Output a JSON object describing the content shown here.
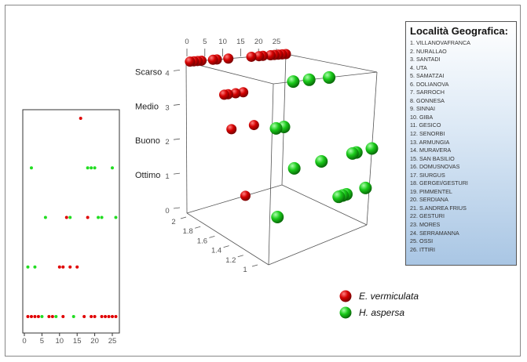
{
  "legend": {
    "title": "Località Geografica:",
    "items": [
      "1. VILLANOVAFRANCA",
      "2. NURALLAO",
      "3. SANTADI",
      "4. UTA",
      "5. SAMATZAI",
      "6. DOLIANOVA",
      "7. SARROCH",
      "8. GONNESA",
      "9. SINNAI",
      "10. GIBA",
      "11. GESICO",
      "12. SENORBI",
      "13. ARMUNGIA",
      "14. MURAVERA",
      "15. SAN BASILIO",
      "16. DOMUSNOVAS",
      "17. SIURGUS",
      "18. GERGEI/GESTURI",
      "19. PIMMENTEL",
      "20. SERDIANA",
      "21. S.ANDREA FRIUS",
      "22. GESTURI",
      "23. MORES",
      "24. SERRAMANNA",
      "25. OSSI",
      "26. ITTIRI"
    ]
  },
  "species_legend": [
    {
      "name": "E. vermiculata",
      "color": "#d40000"
    },
    {
      "name": "H. aspersa",
      "color": "#19c919"
    }
  ],
  "chart_data": [
    {
      "type": "scatter",
      "xlim": [
        0,
        26
      ],
      "ylim": [
        0,
        4
      ],
      "y_reversed": true,
      "grid": false,
      "x_ticks": [
        "0",
        "5",
        "10",
        "15",
        "20",
        "25"
      ],
      "series": [
        {
          "name": "E. vermiculata",
          "color": "#e00000",
          "points": [
            [
              16,
              0
            ],
            [
              12,
              2
            ],
            [
              18,
              2
            ],
            [
              10,
              3
            ],
            [
              11,
              3
            ],
            [
              13,
              3
            ],
            [
              15,
              3
            ],
            [
              1,
              4
            ],
            [
              2,
              4
            ],
            [
              3,
              4
            ],
            [
              4,
              4
            ],
            [
              7,
              4
            ],
            [
              8,
              4
            ],
            [
              11,
              4
            ],
            [
              17,
              4
            ],
            [
              19,
              4
            ],
            [
              20,
              4
            ],
            [
              22,
              4
            ],
            [
              23,
              4
            ],
            [
              24,
              4
            ],
            [
              25,
              4
            ],
            [
              26,
              4
            ]
          ]
        },
        {
          "name": "H. aspersa",
          "color": "#22dd22",
          "points": [
            [
              2,
              1
            ],
            [
              18,
              1
            ],
            [
              19,
              1
            ],
            [
              20,
              1
            ],
            [
              25,
              1
            ],
            [
              6,
              2
            ],
            [
              13,
              2
            ],
            [
              21,
              2
            ],
            [
              22,
              2
            ],
            [
              26,
              2
            ],
            [
              1,
              3
            ],
            [
              3,
              3
            ],
            [
              5,
              4
            ],
            [
              9,
              4
            ],
            [
              14,
              4
            ]
          ]
        }
      ]
    },
    {
      "type": "scatter3d",
      "xlim": [
        0,
        26
      ],
      "ylim": [
        1,
        2
      ],
      "zlim": [
        0,
        4
      ],
      "x_ticks": [
        "0",
        "5",
        "10",
        "15",
        "20",
        "25"
      ],
      "y_ticks": [
        "1",
        "1.2",
        "1.4",
        "1.6",
        "1.8",
        "2"
      ],
      "z_ticks": [
        "0",
        "1",
        "2",
        "3",
        "4"
      ],
      "z_category_labels": {
        "1": "Ottimo",
        "2": "Buono",
        "3": "Medio",
        "4": "Scarso"
      },
      "series": [
        {
          "name": "E. vermiculata",
          "y": 2,
          "color": "#d40000",
          "points": [
            [
              16,
              0
            ],
            [
              12,
              2
            ],
            [
              18,
              2
            ],
            [
              10,
              3
            ],
            [
              11,
              3
            ],
            [
              13,
              3
            ],
            [
              15,
              3
            ],
            [
              1,
              4
            ],
            [
              2,
              4
            ],
            [
              3,
              4
            ],
            [
              4,
              4
            ],
            [
              7,
              4
            ],
            [
              8,
              4
            ],
            [
              11,
              4
            ],
            [
              17,
              4
            ],
            [
              19,
              4
            ],
            [
              20,
              4
            ],
            [
              22,
              4
            ],
            [
              23,
              4
            ],
            [
              24,
              4
            ],
            [
              25,
              4
            ],
            [
              26,
              4
            ]
          ]
        },
        {
          "name": "H. aspersa",
          "y": 1,
          "color": "#19c919",
          "points": [
            [
              2,
              1
            ],
            [
              18,
              1
            ],
            [
              19,
              1
            ],
            [
              20,
              1
            ],
            [
              25,
              1
            ],
            [
              6,
              2
            ],
            [
              13,
              2
            ],
            [
              21,
              2
            ],
            [
              22,
              2
            ],
            [
              26,
              2
            ],
            [
              1,
              3
            ],
            [
              3,
              3
            ],
            [
              5,
              4
            ],
            [
              9,
              4
            ],
            [
              14,
              4
            ]
          ]
        }
      ]
    }
  ]
}
